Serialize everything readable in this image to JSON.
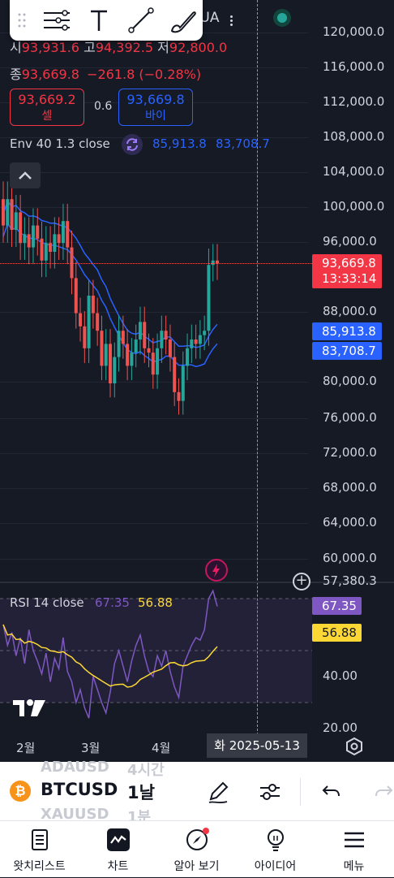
{
  "symbol_short": "TUA",
  "ohlc": {
    "open_label": "시",
    "open_value": "93,931.6",
    "high_label": "고",
    "high_value": "94,392.5",
    "low_label": "저",
    "low_value": "92,800.0",
    "close_label": "종",
    "close_value": "93,669.8",
    "change": "−261.8 (−0.28%)"
  },
  "trade": {
    "sell_price": "93,669.2",
    "sell_label": "셀",
    "spread": "0.6",
    "buy_price": "93,669.8",
    "buy_label": "바이"
  },
  "env_legend": {
    "name": "Env 40 1.3 close",
    "upper": "85,913.8",
    "lower": "83,708.7"
  },
  "rsi_legend": {
    "name": "RSI 14 close",
    "rsi": "67.35",
    "ma": "56.88"
  },
  "price_axis": [
    "120,000.0",
    "116,000.0",
    "112,000.0",
    "108,000.0",
    "104,000.0",
    "100,000.0",
    "96,000.0",
    "88,000.0",
    "80,000.0",
    "76,000.0",
    "72,000.0",
    "68,000.0",
    "64,000.0",
    "60,000.0",
    "57,380.3"
  ],
  "price_tags": {
    "last_price": "93,669.8",
    "countdown": "13:33:14",
    "env_upper": "85,913.8",
    "env_lower": "83,708.7"
  },
  "rsi_axis": [
    "40.00",
    "20.00"
  ],
  "rsi_tags": {
    "rsi": "67.35",
    "ma": "56.88"
  },
  "time_axis": [
    "2월",
    "3월",
    "4월"
  ],
  "crosshair_date": "화 2025-05-13",
  "symbol_list": {
    "above": {
      "symbol": "ADAUSD",
      "interval": "4시간"
    },
    "current": {
      "symbol": "BTCUSD",
      "interval": "1날"
    },
    "below": {
      "symbol": "XAUUSD",
      "interval": "1분"
    }
  },
  "nav": [
    {
      "label": "왓치리스트",
      "icon": "watchlist-icon"
    },
    {
      "label": "차트",
      "icon": "chart-icon"
    },
    {
      "label": "알아 보기",
      "icon": "explore-icon"
    },
    {
      "label": "아이디어",
      "icon": "ideas-icon"
    },
    {
      "label": "메뉴",
      "icon": "menu-icon"
    }
  ],
  "colors": {
    "up": "#26a69a",
    "down": "#ef5350",
    "env": "#2962ff",
    "rsi": "#7e57c2",
    "rsi_ma": "#fdd835",
    "bg": "#161a25"
  },
  "chart_data": {
    "type": "candlestick",
    "symbol": "BTCUSD",
    "interval": "1D",
    "x_labels": [
      "2월",
      "3월",
      "4월"
    ],
    "ylim": [
      57380.3,
      122000
    ],
    "last_price": 93669.8,
    "envelope": {
      "period": 40,
      "percent": 1.3,
      "upper": 85913.8,
      "lower": 83708.7
    },
    "rsi": {
      "period": 14,
      "value": 67.35,
      "ma": 56.88
    }
  }
}
